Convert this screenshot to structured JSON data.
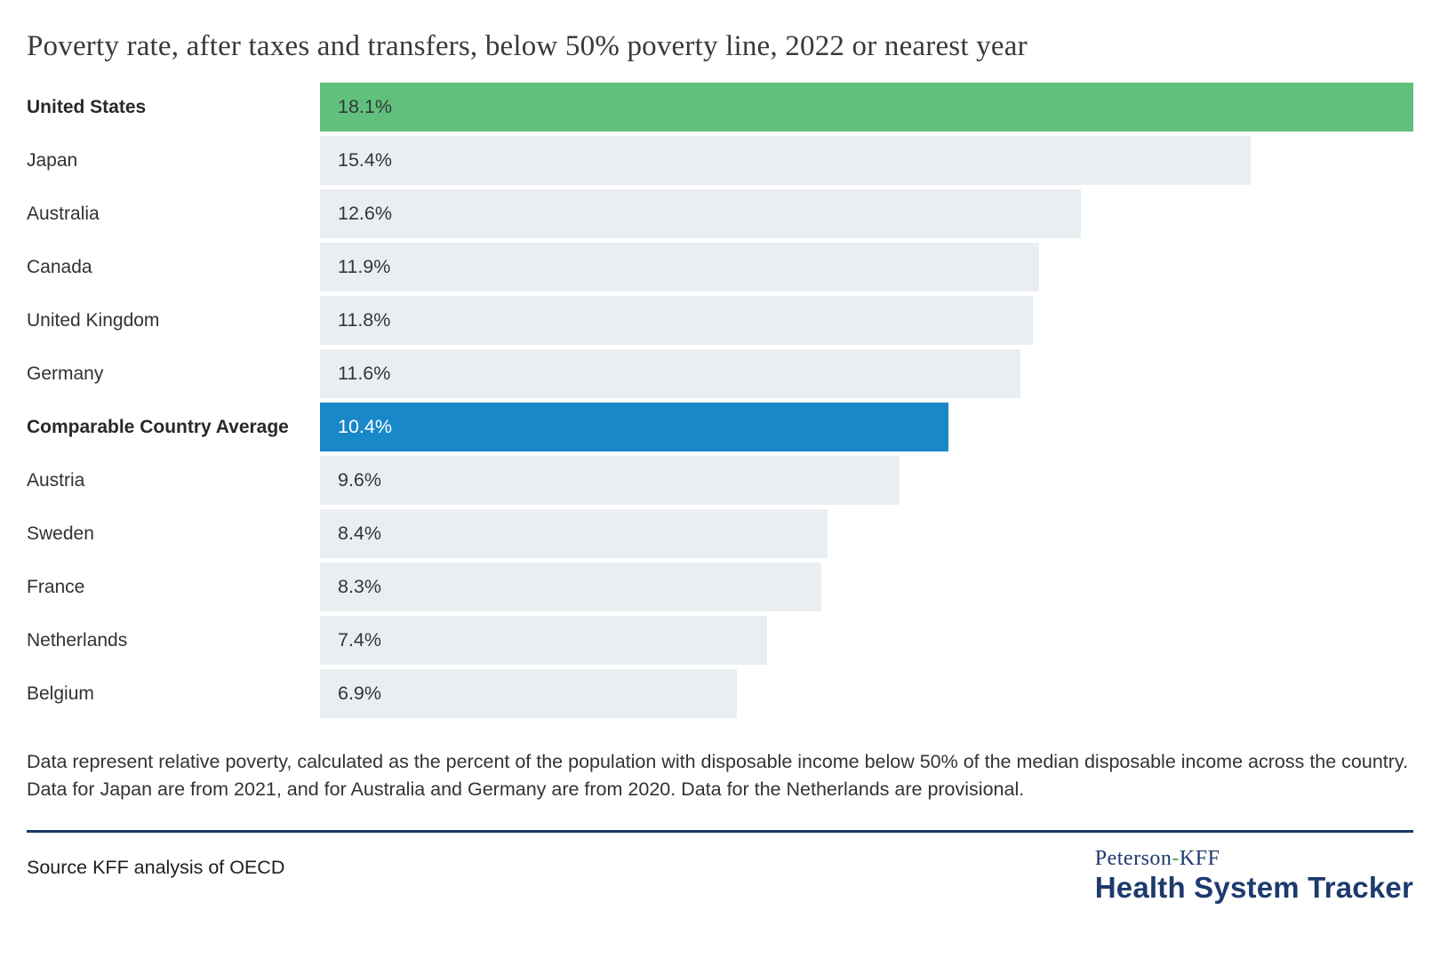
{
  "title": "Poverty rate, after taxes and transfers, below 50% poverty line, 2022 or nearest year",
  "chart_data": {
    "type": "bar",
    "orientation": "horizontal",
    "title": "Poverty rate, after taxes and transfers, below 50% poverty line, 2022 or nearest year",
    "unit": "%",
    "xlim": [
      0,
      18.1
    ],
    "grid": false,
    "legend": false,
    "categories": [
      "United States",
      "Japan",
      "Australia",
      "Canada",
      "United Kingdom",
      "Germany",
      "Comparable Country Average",
      "Austria",
      "Sweden",
      "France",
      "Netherlands",
      "Belgium"
    ],
    "values": [
      18.1,
      15.4,
      12.6,
      11.9,
      11.8,
      11.6,
      10.4,
      9.6,
      8.4,
      8.3,
      7.4,
      6.9
    ],
    "rows": [
      {
        "label": "United States",
        "value": 18.1,
        "display": "18.1%",
        "emphasis": true,
        "color_key": "us"
      },
      {
        "label": "Japan",
        "value": 15.4,
        "display": "15.4%",
        "emphasis": false,
        "color_key": "default"
      },
      {
        "label": "Australia",
        "value": 12.6,
        "display": "12.6%",
        "emphasis": false,
        "color_key": "default"
      },
      {
        "label": "Canada",
        "value": 11.9,
        "display": "11.9%",
        "emphasis": false,
        "color_key": "default"
      },
      {
        "label": "United Kingdom",
        "value": 11.8,
        "display": "11.8%",
        "emphasis": false,
        "color_key": "default"
      },
      {
        "label": "Germany",
        "value": 11.6,
        "display": "11.6%",
        "emphasis": false,
        "color_key": "default"
      },
      {
        "label": "Comparable Country Average",
        "value": 10.4,
        "display": "10.4%",
        "emphasis": true,
        "color_key": "average"
      },
      {
        "label": "Austria",
        "value": 9.6,
        "display": "9.6%",
        "emphasis": false,
        "color_key": "default"
      },
      {
        "label": "Sweden",
        "value": 8.4,
        "display": "8.4%",
        "emphasis": false,
        "color_key": "default"
      },
      {
        "label": "France",
        "value": 8.3,
        "display": "8.3%",
        "emphasis": false,
        "color_key": "default"
      },
      {
        "label": "Netherlands",
        "value": 7.4,
        "display": "7.4%",
        "emphasis": false,
        "color_key": "default"
      },
      {
        "label": "Belgium",
        "value": 6.9,
        "display": "6.9%",
        "emphasis": false,
        "color_key": "default"
      }
    ]
  },
  "colors": {
    "us_bar": "#61c17c",
    "average_bar": "#1888c9",
    "default_bar": "#e9eef2",
    "divider": "#16386b",
    "logo_navy": "#1e3a6d",
    "logo_hyphen_green": "#4aa147"
  },
  "footnote": "Data represent relative poverty, calculated as the percent of the population with disposable income below 50% of the median disposable income across the country. Data for Japan are from 2021, and for Australia and Germany are from 2020. Data for the Netherlands are provisional.",
  "source": "Source KFF analysis of OECD",
  "logo": {
    "brand_left": "Peterson",
    "hyphen": "-",
    "brand_right": "KFF",
    "product": "Health System Tracker"
  }
}
